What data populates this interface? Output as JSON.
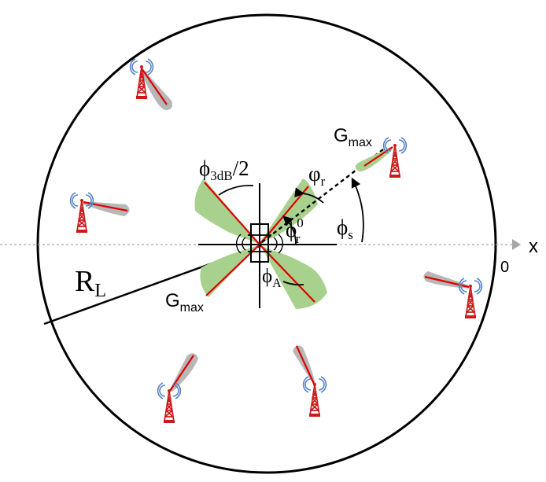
{
  "labels": {
    "x_axis": "x",
    "origin": "0",
    "radius": "R",
    "radius_sub": "L",
    "gmax": "G",
    "gmax_sub": "max",
    "phi_3db": "ϕ",
    "phi_3db_sub": "3dB",
    "phi_3db_rest": "/2",
    "phi_r": "φ",
    "phi_r_sub": "r",
    "phi_r0": "ϕ",
    "phi_r0_sup": "0",
    "phi_r0_sub": "r",
    "phi_s": "ϕ",
    "phi_s_sub": "s",
    "phi_a": "ϕ",
    "phi_a_sub": "A"
  },
  "colors": {
    "beam_green": "#a9d18e",
    "beam_gray": "#b7b7b7",
    "red_line": "#e00000",
    "tower_red": "#cc1a1a",
    "signal_blue": "#5a86c8",
    "axis_gray": "#a6a6a6"
  },
  "icons": [
    "radar-device-icon",
    "cell-tower-icon"
  ]
}
